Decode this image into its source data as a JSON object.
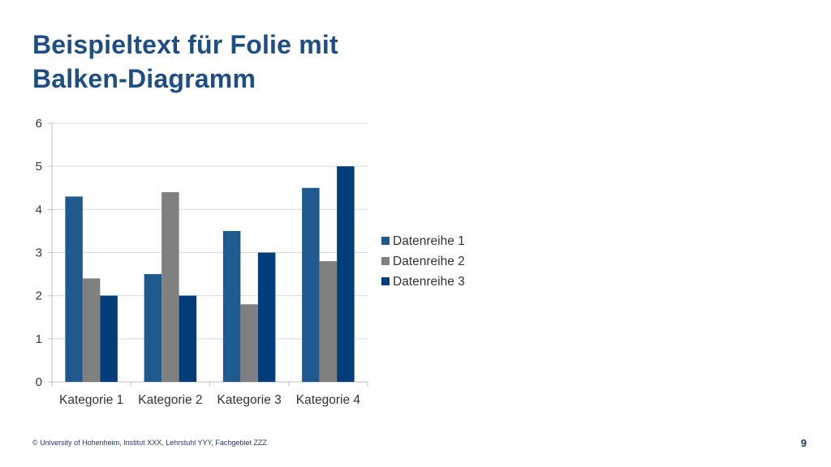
{
  "slide": {
    "title_line1": "Beispieltext für Folie mit",
    "title_line2": "Balken-Diagramm",
    "footer": "© University of Hohenheim, Institut XXX,  Lehrstuhl YYY, Fachgebiet ZZZ",
    "page_number": "9"
  },
  "colors": {
    "title": "#1f4e84",
    "series1": "#1f5a8f",
    "series2": "#808080",
    "series3": "#003d7a",
    "grid": "#d9d9d9"
  },
  "chart_data": {
    "type": "bar",
    "categories": [
      "Kategorie 1",
      "Kategorie 2",
      "Kategorie 3",
      "Kategorie 4"
    ],
    "series": [
      {
        "name": "Datenreihe 1",
        "values": [
          4.3,
          2.5,
          3.5,
          4.5
        ]
      },
      {
        "name": "Datenreihe 2",
        "values": [
          2.4,
          4.4,
          1.8,
          2.8
        ]
      },
      {
        "name": "Datenreihe 3",
        "values": [
          2,
          2,
          3,
          5
        ]
      }
    ],
    "y_ticks": [
      "0",
      "1",
      "2",
      "3",
      "4",
      "5",
      "6"
    ],
    "ylim": [
      0,
      6
    ],
    "grid": true,
    "legend": "right"
  }
}
